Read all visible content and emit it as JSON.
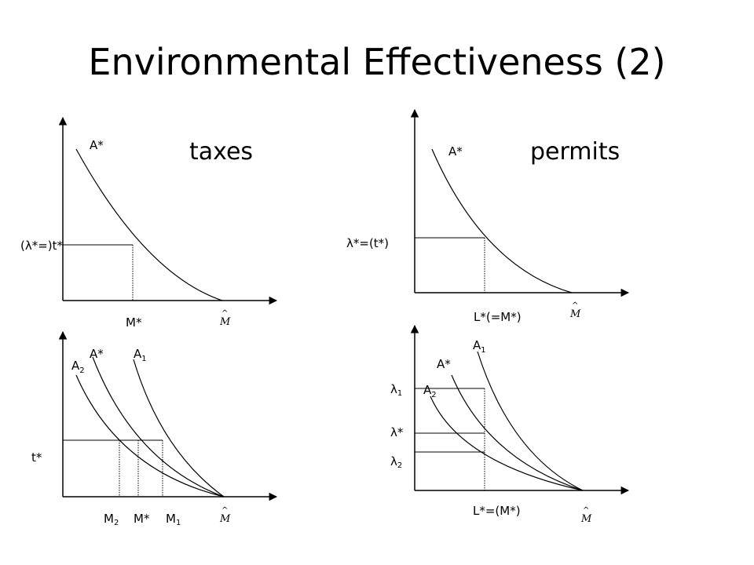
{
  "slide": {
    "title": "Environmental Effectiveness (2)"
  },
  "panels": {
    "taxes": {
      "heading": "taxes",
      "curve_label": "A*",
      "y_label": "(λ*=)t*",
      "x_label": "M*",
      "axis_end_label": "M",
      "axis_end_accent": "^"
    },
    "permits": {
      "heading": "permits",
      "curve_label": "A*",
      "y_label": "λ*=(t*)",
      "x_label": "L*(=M*)",
      "axis_end_label": "M",
      "axis_end_accent": "^"
    },
    "taxes_shift": {
      "curve_labels": {
        "a_star": "A*",
        "a1_base": "A",
        "a1_sub": "1",
        "a2_base": "A",
        "a2_sub": "2"
      },
      "y_label": "t*",
      "x_labels": {
        "m2_base": "M",
        "m2_sub": "2",
        "m_star": "M*",
        "m1_base": "M",
        "m1_sub": "1"
      },
      "axis_end_label": "M",
      "axis_end_accent": "^"
    },
    "permits_shift": {
      "curve_labels": {
        "a_star": "A*",
        "a1_base": "A",
        "a1_sub": "1",
        "a2_base": "A",
        "a2_sub": "2"
      },
      "y_labels": {
        "lambda1_base": "λ",
        "lambda1_sub": "1",
        "lambda_star": "λ*",
        "lambda2_base": "λ",
        "lambda2_sub": "2"
      },
      "x_label": "L*=(M*)",
      "axis_end_label": "M",
      "axis_end_accent": "^"
    }
  }
}
